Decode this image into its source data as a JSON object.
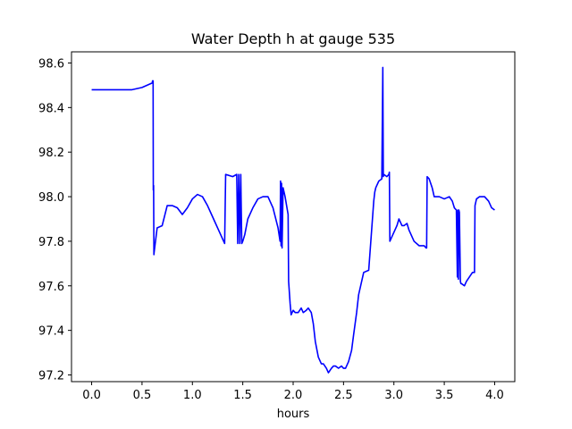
{
  "chart_data": {
    "type": "line",
    "title": "Water Depth h at gauge 535",
    "xlabel": "hours",
    "ylabel": "",
    "xlim": [
      -0.2,
      4.2
    ],
    "ylim": [
      97.17,
      98.65
    ],
    "xticks": [
      0.0,
      0.5,
      1.0,
      1.5,
      2.0,
      2.5,
      3.0,
      3.5,
      4.0
    ],
    "xtick_labels": [
      "0.0",
      "0.5",
      "1.0",
      "1.5",
      "2.0",
      "2.5",
      "3.0",
      "3.5",
      "4.0"
    ],
    "yticks": [
      97.2,
      97.4,
      97.6,
      97.8,
      98.0,
      98.2,
      98.4,
      98.6
    ],
    "ytick_labels": [
      "97.2",
      "97.4",
      "97.6",
      "97.8",
      "98.0",
      "98.2",
      "98.4",
      "98.6"
    ],
    "grid": false,
    "series": [
      {
        "color": "#0000ff",
        "x": [
          0.0,
          0.2,
          0.4,
          0.5,
          0.55,
          0.6,
          0.605,
          0.61,
          0.612,
          0.615,
          0.618,
          0.62,
          0.65,
          0.7,
          0.75,
          0.8,
          0.85,
          0.9,
          0.95,
          1.0,
          1.05,
          1.1,
          1.15,
          1.2,
          1.25,
          1.3,
          1.32,
          1.33,
          1.4,
          1.44,
          1.45,
          1.46,
          1.47,
          1.48,
          1.49,
          1.5,
          1.52,
          1.55,
          1.6,
          1.65,
          1.7,
          1.75,
          1.8,
          1.85,
          1.87,
          1.875,
          1.88,
          1.885,
          1.89,
          1.9,
          1.92,
          1.95,
          1.955,
          1.97,
          1.98,
          1.99,
          2.0,
          2.02,
          2.05,
          2.08,
          2.1,
          2.13,
          2.15,
          2.18,
          2.2,
          2.22,
          2.25,
          2.28,
          2.3,
          2.33,
          2.35,
          2.38,
          2.4,
          2.42,
          2.45,
          2.48,
          2.5,
          2.52,
          2.55,
          2.58,
          2.6,
          2.63,
          2.65,
          2.7,
          2.75,
          2.8,
          2.81,
          2.82,
          2.85,
          2.88,
          2.89,
          2.895,
          2.9,
          2.93,
          2.95,
          2.955,
          2.96,
          3.0,
          3.03,
          3.05,
          3.08,
          3.1,
          3.13,
          3.15,
          3.2,
          3.25,
          3.3,
          3.32,
          3.325,
          3.33,
          3.35,
          3.38,
          3.4,
          3.45,
          3.5,
          3.55,
          3.58,
          3.6,
          3.62,
          3.63,
          3.635,
          3.64,
          3.645,
          3.65,
          3.66,
          3.665,
          3.67,
          3.7,
          3.72,
          3.75,
          3.78,
          3.8,
          3.805,
          3.82,
          3.85,
          3.9,
          3.92,
          3.94,
          3.97,
          4.0
        ],
        "y": [
          98.48,
          98.48,
          98.48,
          98.49,
          98.5,
          98.51,
          98.52,
          98.52,
          98.03,
          98.05,
          97.74,
          97.75,
          97.86,
          97.87,
          97.96,
          97.96,
          97.95,
          97.92,
          97.95,
          97.99,
          98.01,
          98.0,
          97.96,
          97.91,
          97.86,
          97.81,
          97.79,
          98.1,
          98.09,
          98.1,
          97.79,
          98.1,
          97.79,
          98.1,
          97.79,
          97.8,
          97.83,
          97.9,
          97.95,
          97.99,
          98.0,
          98.0,
          97.95,
          97.86,
          97.8,
          98.07,
          97.78,
          98.06,
          97.77,
          98.04,
          98.0,
          97.92,
          97.62,
          97.52,
          97.47,
          97.48,
          97.49,
          97.48,
          97.48,
          97.5,
          97.48,
          97.49,
          97.5,
          97.48,
          97.43,
          97.35,
          97.28,
          97.25,
          97.25,
          97.23,
          97.21,
          97.23,
          97.24,
          97.24,
          97.23,
          97.24,
          97.23,
          97.23,
          97.26,
          97.31,
          97.38,
          97.48,
          97.56,
          97.66,
          97.67,
          97.98,
          98.02,
          98.04,
          98.07,
          98.08,
          98.58,
          98.09,
          98.1,
          98.09,
          98.1,
          98.11,
          97.8,
          97.84,
          97.87,
          97.9,
          97.87,
          97.87,
          97.88,
          97.85,
          97.8,
          97.78,
          97.78,
          97.77,
          97.77,
          98.09,
          98.08,
          98.04,
          98.0,
          98.0,
          97.99,
          98.0,
          97.98,
          97.95,
          97.94,
          97.64,
          97.94,
          97.63,
          97.94,
          97.93,
          97.62,
          97.61,
          97.61,
          97.6,
          97.62,
          97.64,
          97.66,
          97.66,
          97.96,
          97.99,
          98.0,
          98.0,
          97.99,
          97.98,
          97.95,
          97.94
        ]
      }
    ]
  }
}
